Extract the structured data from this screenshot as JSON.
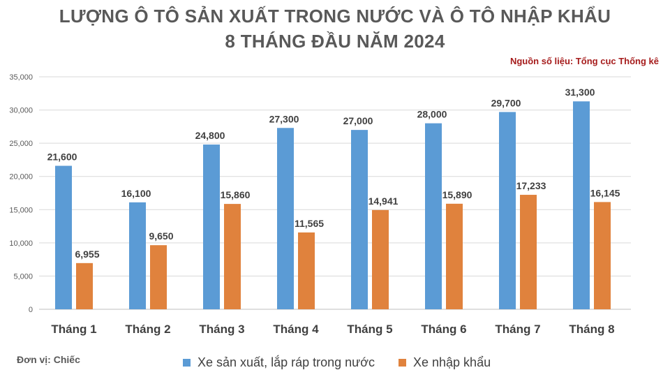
{
  "title_line1": "LƯỢNG Ô TÔ SẢN XUẤT TRONG NƯỚC VÀ Ô TÔ NHẬP KHẨU",
  "title_line2": "8 THÁNG ĐẦU NĂM 2024",
  "source": "Nguồn số liệu: Tổng cục Thống kê",
  "unit": "Đơn vị: Chiếc",
  "colors": {
    "domestic": "#5b9bd5",
    "imported": "#e0823d"
  },
  "chart_data": {
    "type": "bar",
    "categories": [
      "Tháng 1",
      "Tháng 2",
      "Tháng 3",
      "Tháng 4",
      "Tháng 5",
      "Tháng 6",
      "Tháng 7",
      "Tháng 8"
    ],
    "series": [
      {
        "name": "Xe sản xuất, lắp ráp trong nước",
        "values": [
          21600,
          16100,
          24800,
          27300,
          27000,
          28000,
          29700,
          31300
        ],
        "labels": [
          "21,600",
          "16,100",
          "24,800",
          "27,300",
          "27,000",
          "28,000",
          "29,700",
          "31,300"
        ]
      },
      {
        "name": "Xe nhập khẩu",
        "values": [
          6955,
          9650,
          15860,
          11565,
          14941,
          15890,
          17233,
          16145
        ],
        "labels": [
          "6,955",
          "9,650",
          "15,860",
          "11,565",
          "14,941",
          "15,890",
          "17,233",
          "16,145"
        ]
      }
    ],
    "ylim": [
      0,
      35000
    ],
    "yticks": [
      0,
      5000,
      10000,
      15000,
      20000,
      25000,
      30000,
      35000
    ],
    "ytick_labels": [
      "0",
      "5,000",
      "10,000",
      "15,000",
      "20,000",
      "25,000",
      "30,000",
      "35,000"
    ],
    "grid": true,
    "legend_position": "bottom"
  }
}
